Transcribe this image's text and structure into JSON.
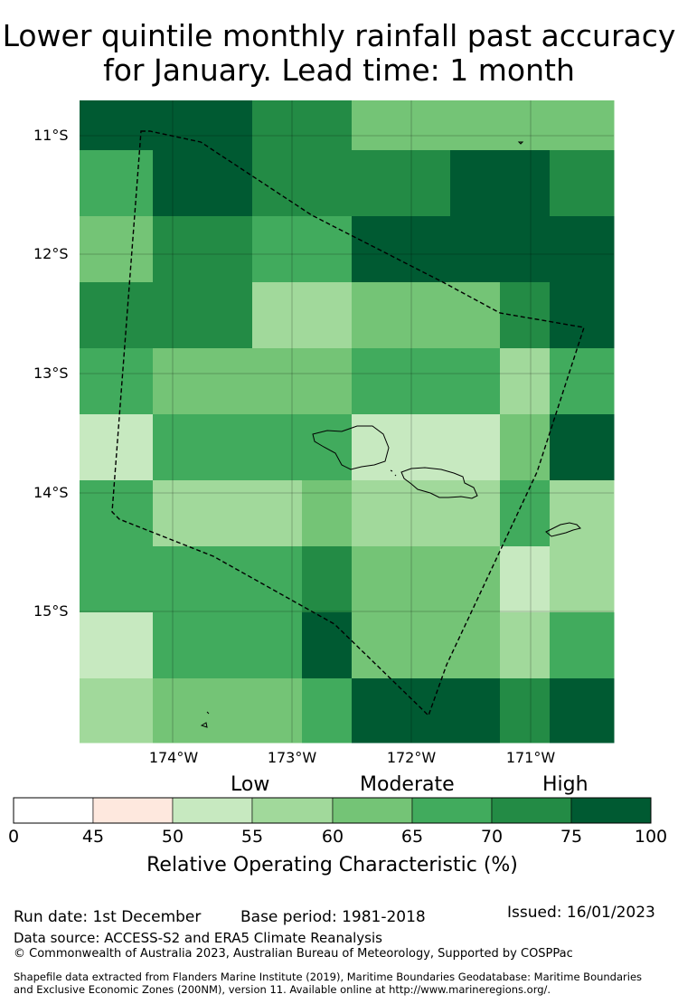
{
  "title_line1": "Lower quintile monthly rainfall past accuracy",
  "title_line2": "for January. Lead time: 1 month",
  "map": {
    "lat_labels": [
      "11°S",
      "12°S",
      "13°S",
      "14°S",
      "15°S"
    ],
    "lon_labels": [
      "174°W",
      "173°W",
      "172°W",
      "171°W"
    ],
    "legend_categories": [
      "Low",
      "Moderate",
      "High"
    ],
    "grid_roc_percent": [
      [
        75,
        75,
        70,
        70,
        60,
        60,
        60,
        60
      ],
      [
        65,
        75,
        70,
        70,
        70,
        75,
        75,
        70
      ],
      [
        60,
        70,
        65,
        65,
        75,
        75,
        75,
        75
      ],
      [
        70,
        70,
        55,
        55,
        60,
        60,
        70,
        75
      ],
      [
        65,
        60,
        60,
        60,
        65,
        65,
        55,
        65
      ],
      [
        50,
        65,
        65,
        65,
        50,
        50,
        60,
        75
      ],
      [
        65,
        55,
        55,
        60,
        55,
        55,
        65,
        55
      ],
      [
        65,
        65,
        65,
        70,
        60,
        60,
        50,
        55
      ],
      [
        50,
        65,
        65,
        75,
        60,
        60,
        55,
        65
      ],
      [
        55,
        60,
        60,
        65,
        75,
        75,
        70,
        75
      ]
    ]
  },
  "colorbar": {
    "title": "Relative Operating Characteristic (%)",
    "ticks": [
      "0",
      "45",
      "50",
      "55",
      "60",
      "65",
      "70",
      "75",
      "100"
    ],
    "colors": [
      "#ffffff",
      "#fee8de",
      "#c7e9c0",
      "#a1d99b",
      "#74c476",
      "#41ab5d",
      "#238b45",
      "#005a32"
    ]
  },
  "footer": {
    "run_date": "Run date: 1st December",
    "base_period": "Base period: 1981-2018",
    "issued": "Issued: 16/01/2023",
    "data_source": "Data source: ACCESS-S2 and ERA5 Climate Reanalysis",
    "copyright": "© Commonwealth of Australia 2023, Australian Bureau of Meteorology, Supported by COSPPac",
    "shapefile_line1": "Shapefile data extracted from Flanders Marine Institute (2019), Maritime Boundaries Geodatabase: Maritime Boundaries",
    "shapefile_line2": "and Exclusive Economic Zones (200NM), version 11. Available online at http://www.marineregions.org/."
  }
}
